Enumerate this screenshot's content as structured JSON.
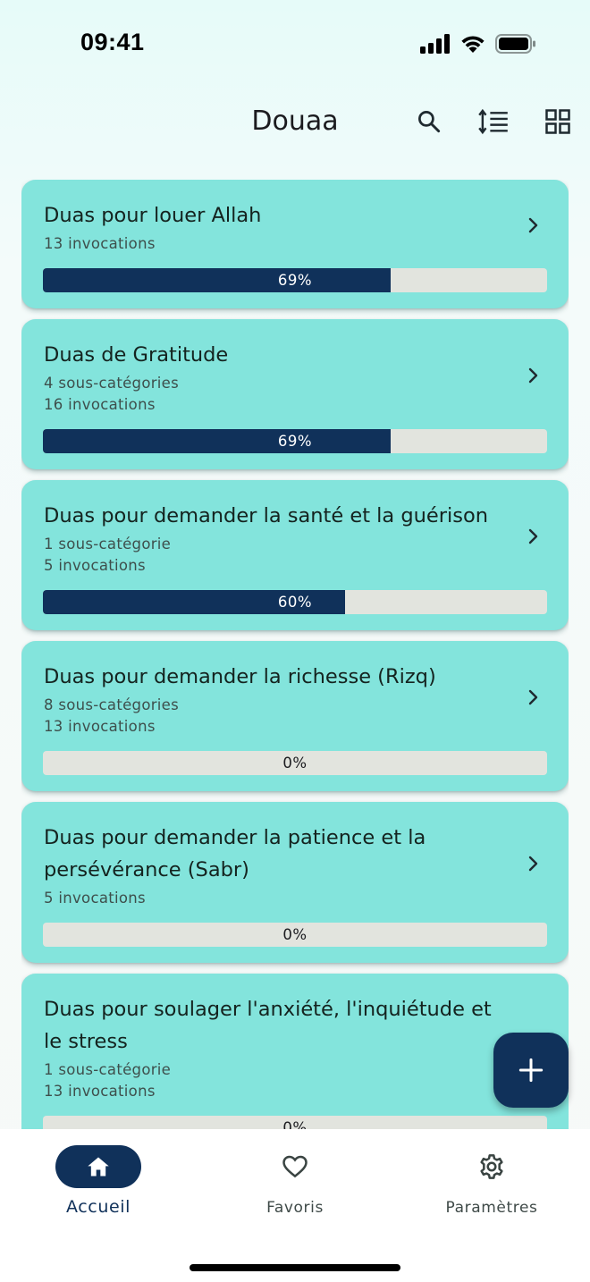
{
  "status_bar": {
    "time": "09:41"
  },
  "header": {
    "title": "Douaa",
    "icons": [
      "search-icon",
      "sort-icon",
      "grid-view-icon"
    ]
  },
  "categories": [
    {
      "title": "Duas pour louer Allah",
      "subtitle_lines": [
        "13 invocations"
      ],
      "progress": 69,
      "progress_label": "69%"
    },
    {
      "title": "Duas de Gratitude",
      "subtitle_lines": [
        "4 sous-catégories",
        "16 invocations"
      ],
      "progress": 69,
      "progress_label": "69%"
    },
    {
      "title": "Duas pour demander la santé et la guérison",
      "subtitle_lines": [
        "1 sous-catégorie",
        "5 invocations"
      ],
      "progress": 60,
      "progress_label": "60%"
    },
    {
      "title": "Duas pour demander la richesse (Rizq)",
      "subtitle_lines": [
        "8 sous-catégories",
        "13 invocations"
      ],
      "progress": 0,
      "progress_label": "0%"
    },
    {
      "title": "Duas pour demander la patience et la persévérance (Sabr)",
      "subtitle_lines": [
        "5 invocations"
      ],
      "progress": 0,
      "progress_label": "0%"
    },
    {
      "title": "Duas pour soulager l'anxiété, l'inquiétude et le stress",
      "subtitle_lines": [
        "1 sous-catégorie",
        "13 invocations"
      ],
      "progress": 0,
      "progress_label": "0%"
    }
  ],
  "fab": {
    "icon": "plus-icon"
  },
  "bottom_nav": {
    "items": [
      {
        "label": "Accueil",
        "icon": "home-icon",
        "active": true
      },
      {
        "label": "Favoris",
        "icon": "heart-icon",
        "active": false
      },
      {
        "label": "Paramètres",
        "icon": "gear-icon",
        "active": false
      }
    ]
  },
  "colors": {
    "card": "#83e4dc",
    "accent": "#10315a",
    "progress_track": "#e2e4de",
    "background": "#f4fbfa"
  }
}
